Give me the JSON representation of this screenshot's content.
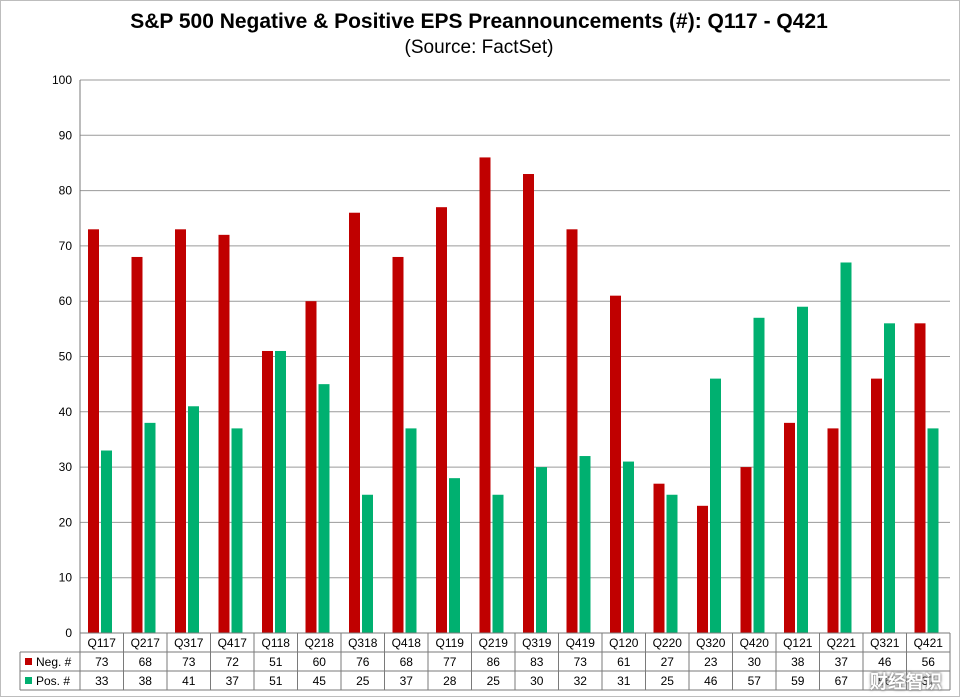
{
  "title": "S&P 500 Negative & Positive EPS Preannouncements (#): Q117 - Q421",
  "subtitle": "(Source: FactSet)",
  "watermark": "财经智识",
  "colors": {
    "neg": "#C00000",
    "pos": "#00B070"
  },
  "chart_data": {
    "type": "bar",
    "title": "S&P 500 Negative & Positive EPS Preannouncements (#): Q117 - Q421",
    "subtitle": "(Source: FactSet)",
    "categories": [
      "Q117",
      "Q217",
      "Q317",
      "Q417",
      "Q118",
      "Q218",
      "Q318",
      "Q418",
      "Q119",
      "Q219",
      "Q319",
      "Q419",
      "Q120",
      "Q220",
      "Q320",
      "Q420",
      "Q121",
      "Q221",
      "Q321",
      "Q421"
    ],
    "series": [
      {
        "name": "Neg. #",
        "color": "#C00000",
        "values": [
          73,
          68,
          73,
          72,
          51,
          60,
          76,
          68,
          77,
          86,
          83,
          73,
          61,
          27,
          23,
          30,
          38,
          37,
          46,
          56
        ]
      },
      {
        "name": "Pos. #",
        "color": "#00B070",
        "values": [
          33,
          38,
          41,
          37,
          51,
          45,
          25,
          37,
          28,
          25,
          30,
          32,
          31,
          25,
          46,
          57,
          59,
          67,
          56,
          37
        ]
      }
    ],
    "ylim": [
      0,
      100
    ],
    "yticks": [
      0,
      10,
      20,
      30,
      40,
      50,
      60,
      70,
      80,
      90,
      100
    ],
    "grid": true,
    "legend": "data-table"
  }
}
